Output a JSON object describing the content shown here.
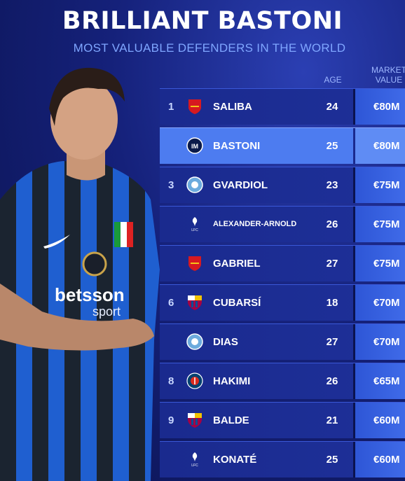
{
  "header": {
    "title": "BRILLIANT BASTONI",
    "subtitle": "MOST VALUABLE DEFENDERS IN THE WORLD",
    "col_age": "AGE",
    "col_value_line1": "MARKET",
    "col_value_line2": "VALUE"
  },
  "jersey": {
    "sponsor": "betsson",
    "sponsor_sub": "sport"
  },
  "rows": [
    {
      "rank": "1",
      "crest": "arsenal-crest-icon",
      "name": "SALIBA",
      "age": "24",
      "value": "€80M"
    },
    {
      "rank": "",
      "crest": "inter-crest-icon",
      "name": "BASTONI",
      "age": "25",
      "value": "€80M"
    },
    {
      "rank": "3",
      "crest": "man-city-crest-icon",
      "name": "GVARDIOL",
      "age": "23",
      "value": "€75M"
    },
    {
      "rank": "",
      "crest": "liverpool-crest-icon",
      "name": "ALEXANDER-ARNOLD",
      "age": "26",
      "value": "€75M"
    },
    {
      "rank": "",
      "crest": "arsenal-crest-icon",
      "name": "GABRIEL",
      "age": "27",
      "value": "€75M"
    },
    {
      "rank": "6",
      "crest": "barcelona-crest-icon",
      "name": "CUBARSÍ",
      "age": "18",
      "value": "€70M"
    },
    {
      "rank": "",
      "crest": "man-city-crest-icon",
      "name": "DIAS",
      "age": "27",
      "value": "€70M"
    },
    {
      "rank": "8",
      "crest": "psg-crest-icon",
      "name": "HAKIMI",
      "age": "26",
      "value": "€65M"
    },
    {
      "rank": "9",
      "crest": "barcelona-crest-icon",
      "name": "BALDE",
      "age": "21",
      "value": "€60M"
    },
    {
      "rank": "",
      "crest": "liverpool-crest-icon",
      "name": "KONATÉ",
      "age": "25",
      "value": "€60M"
    }
  ],
  "colors": {
    "background": "#15217a",
    "highlight_row": "#4d7cf0",
    "value_cell": "#3f6ae8",
    "subtitle": "#7fa6ff"
  }
}
